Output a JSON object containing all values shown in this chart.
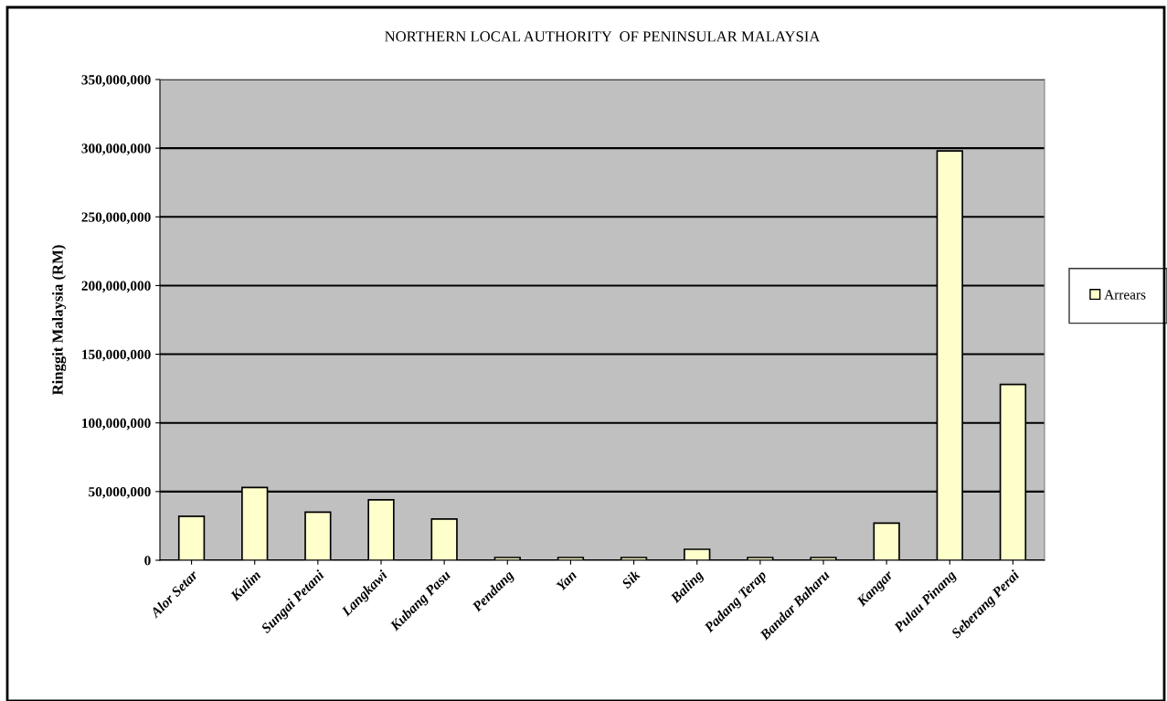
{
  "chart_data": {
    "type": "bar",
    "title": "NORTHERN LOCAL AUTHORITY  OF PENINSULAR MALAYSIA",
    "ylabel": "Ringgit Malaysia (RM)",
    "categories": [
      "Alor Setar",
      "Kulim",
      "Sungai Petani",
      "Langkawi",
      "Kubang Pasu",
      "Pendang",
      "Yan",
      "Sik",
      "Baling",
      "Padang Terap",
      "Bandar Baharu",
      "Kangar",
      "Pulau Pinang",
      "Seberang Perai"
    ],
    "series": [
      {
        "name": "Arrears",
        "color": "#ffffcc",
        "values": [
          32000000,
          53000000,
          35000000,
          44000000,
          30000000,
          2000000,
          2000000,
          2000000,
          8000000,
          2000000,
          2000000,
          27000000,
          298000000,
          128000000
        ]
      }
    ],
    "ylim": [
      0,
      350000000
    ],
    "yticks": [
      {
        "value": 0,
        "label": "0"
      },
      {
        "value": 50000000,
        "label": "50,000,000"
      },
      {
        "value": 100000000,
        "label": "100,000,000"
      },
      {
        "value": 150000000,
        "label": "150,000,000"
      },
      {
        "value": 200000000,
        "label": "200,000,000"
      },
      {
        "value": 250000000,
        "label": "250,000,000"
      },
      {
        "value": 300000000,
        "label": "300,000,000"
      },
      {
        "value": 350000000,
        "label": "350,000,000"
      }
    ],
    "grid": "y",
    "legend": "right"
  }
}
